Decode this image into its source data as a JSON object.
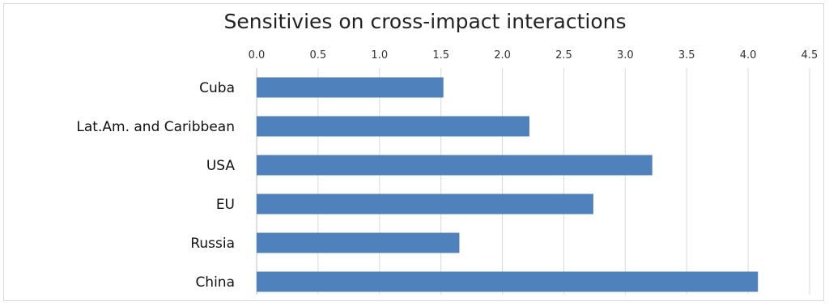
{
  "chart_data": {
    "type": "bar",
    "orientation": "horizontal",
    "title": "Sensitivies on cross-impact interactions",
    "categories": [
      "Cuba",
      "Lat.Am. and Caribbean",
      "USA",
      "EU",
      "Russia",
      "China"
    ],
    "values": [
      1.52,
      2.22,
      3.22,
      2.74,
      1.65,
      4.08
    ],
    "xlim": [
      0,
      4.5
    ],
    "tick_labels": [
      "0.0",
      "0.5",
      "1.0",
      "1.5",
      "2.0",
      "2.5",
      "3.0",
      "3.5",
      "4.0",
      "4.5"
    ],
    "xaxis_position": "top",
    "grid": true,
    "legend": "none",
    "bar_color": "#4f81bd",
    "grid_color": "#d9d9d9"
  }
}
